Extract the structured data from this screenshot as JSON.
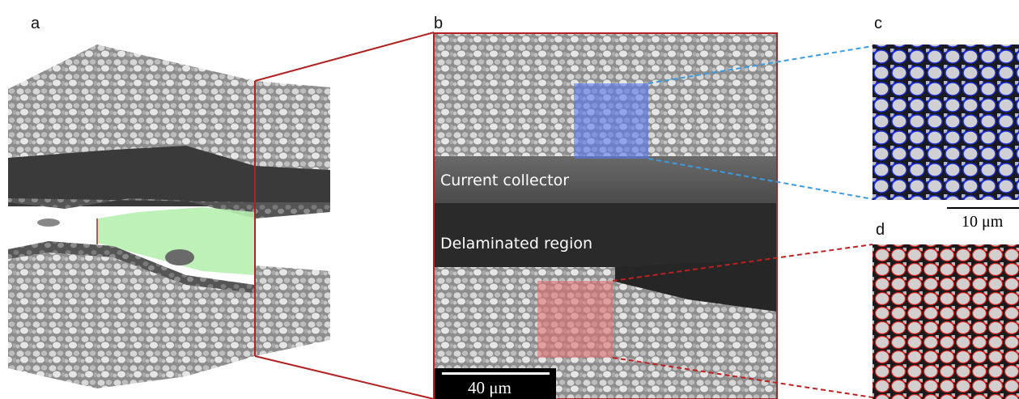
{
  "labels": {
    "a": "a",
    "b": "b",
    "c": "c",
    "d": "d"
  },
  "panel_b": {
    "current_collector": "Current collector",
    "delaminated_region": "Delaminated region",
    "scalebar": "40 μm"
  },
  "panel_c": {
    "scalebar": "10 μm"
  },
  "colors": {
    "red_frame": "#b22222",
    "blue_roi": "#5a78f0",
    "red_roi": "#e07070",
    "delamination_highlight": "#b6f0b0"
  }
}
